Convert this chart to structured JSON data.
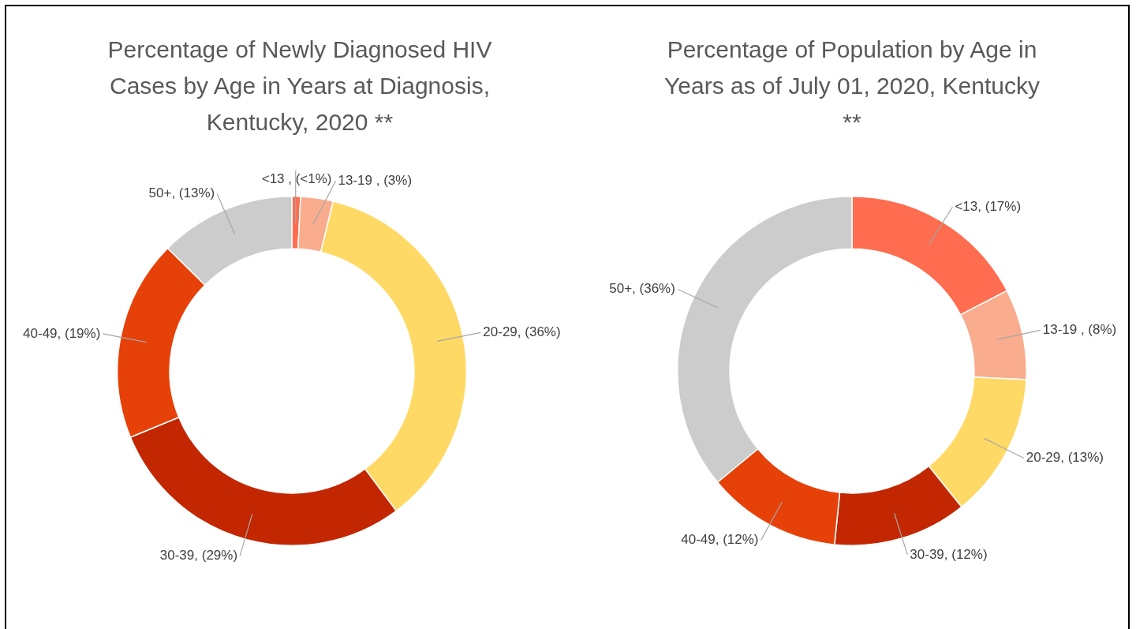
{
  "chart_data": [
    {
      "type": "donut",
      "title": "Percentage of Newly Diagnosed HIV Cases by Age in Years at Diagnosis, Kentucky, 2020 **",
      "categories": [
        "<13 ",
        "13-19 ",
        "20-29",
        "30-39",
        "40-49",
        "50+"
      ],
      "values": [
        0.8,
        3,
        36,
        29,
        18.6,
        12.6
      ],
      "colors": [
        "#fe6d4f",
        "#f9ad8e",
        "#ffd966",
        "#c22702",
        "#e64109",
        "#cccccc"
      ],
      "value_labels": [
        "(<1%)",
        "(3%)",
        "(36%)",
        "(29%)",
        "(19%)",
        "(13%)"
      ],
      "legend": false
    },
    {
      "type": "donut",
      "title": "Percentage of Population by Age in Years as of July 01, 2020, Kentucky **",
      "categories": [
        "<13",
        "13-19 ",
        "20-29",
        "30-39",
        "40-49",
        "50+"
      ],
      "values": [
        17.4,
        8.4,
        13.4,
        12.4,
        12.4,
        36
      ],
      "colors": [
        "#fe6d4f",
        "#f9ad8e",
        "#ffd966",
        "#c22702",
        "#e64109",
        "#cccccc"
      ],
      "value_labels": [
        "(17%)",
        "(8%)",
        "(13%)",
        "(12%)",
        "(12%)",
        "(36%)"
      ],
      "legend": false
    }
  ]
}
